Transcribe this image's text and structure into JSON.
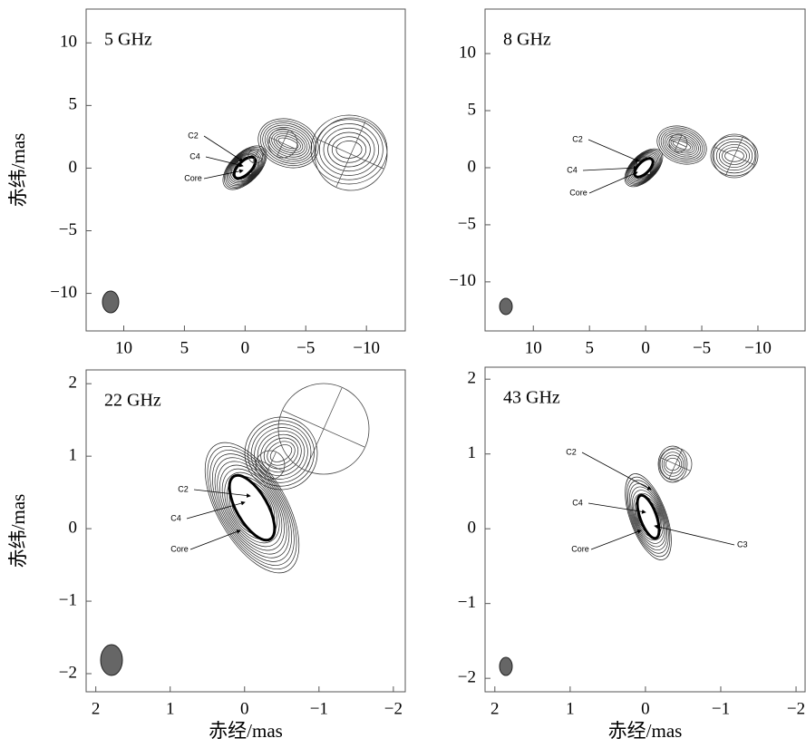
{
  "chart_data": [
    {
      "type": "contour",
      "title": "5 GHz",
      "y_label": "赤纬/mas",
      "xlim": [
        13.1,
        -13.2
      ],
      "ylim": [
        -13.0,
        12.7
      ],
      "xticks": [
        10,
        5,
        0,
        {
          "value": -5,
          "label": "−5"
        },
        {
          "value": -10,
          "label": "−10"
        }
      ],
      "yticks": [
        {
          "value": -10,
          "label": "−10"
        },
        {
          "value": -5,
          "label": "−5"
        },
        0,
        5,
        10
      ],
      "annotations": [
        "C2",
        "C4",
        "Core"
      ]
    },
    {
      "type": "contour",
      "title": "8 GHz",
      "xlim": [
        14.3,
        -14.2
      ],
      "ylim": [
        -14.3,
        13.9
      ],
      "xticks": [
        10,
        5,
        0,
        {
          "value": -5,
          "label": "−5"
        },
        {
          "value": -10,
          "label": "−10"
        }
      ],
      "yticks": [
        {
          "value": -10,
          "label": "−10"
        },
        {
          "value": -5,
          "label": "−5"
        },
        0,
        5,
        10
      ],
      "annotations": [
        "C2",
        "C4",
        "Core"
      ]
    },
    {
      "type": "contour",
      "title": "22 GHz",
      "y_label": "赤纬/mas",
      "x_label": "赤经/mas",
      "xlim": [
        2.13,
        -2.16
      ],
      "ylim": [
        -2.25,
        2.19
      ],
      "xticks": [
        2,
        1,
        0,
        {
          "value": -1,
          "label": "−1"
        },
        {
          "value": -2,
          "label": "−2"
        }
      ],
      "yticks": [
        {
          "value": -2,
          "label": "−2"
        },
        {
          "value": -1,
          "label": "−1"
        },
        0,
        1,
        2
      ],
      "annotations": [
        "C2",
        "C4",
        "Core"
      ]
    },
    {
      "type": "contour",
      "title": "43 GHz",
      "x_label": "赤经/mas",
      "xlim": [
        2.13,
        -2.12
      ],
      "ylim": [
        -2.18,
        2.16
      ],
      "xticks": [
        2,
        1,
        0,
        {
          "value": -1,
          "label": "−1"
        },
        {
          "value": -2,
          "label": "−2"
        }
      ],
      "yticks": [
        {
          "value": -2,
          "label": "−2"
        },
        {
          "value": -1,
          "label": "−1"
        },
        0,
        1,
        2
      ],
      "annotations": [
        "C2",
        "C4",
        "Core",
        "C3"
      ]
    }
  ]
}
